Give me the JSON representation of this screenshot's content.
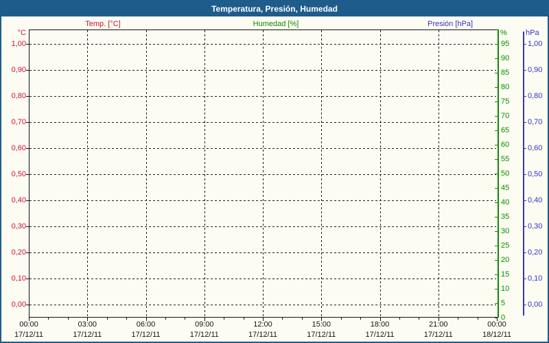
{
  "chart_data": {
    "type": "line",
    "title": "Temperatura, Presión, Humedad",
    "series": [
      {
        "name": "Temp. [°C]",
        "unit": "°C",
        "color": "#CC1133",
        "axis": "left",
        "values": []
      },
      {
        "name": "Humedad [%]",
        "unit": "%",
        "color": "#0B8A00",
        "axis": "right_inner",
        "values": []
      },
      {
        "name": "Presión [hPa]",
        "unit": "hPa",
        "color": "#3232CD",
        "axis": "right_outer",
        "values": []
      }
    ],
    "axes": {
      "left": {
        "unit": "°C",
        "color": "#CC1133",
        "min": 0.0,
        "max": 1.0,
        "step": 0.1,
        "tick_labels": [
          "1,00",
          "0,90",
          "0,80",
          "0,70",
          "0,60",
          "0,50",
          "0,40",
          "0,30",
          "0,20",
          "0,10",
          "0,00"
        ]
      },
      "right_inner": {
        "unit": "%",
        "color": "#0B8A00",
        "min": 0,
        "max": 100,
        "step": 5,
        "tick_labels": [
          "95",
          "90",
          "85",
          "80",
          "75",
          "70",
          "65",
          "60",
          "55",
          "50",
          "45",
          "40",
          "35",
          "30",
          "25",
          "20",
          "15",
          "10",
          "5",
          "0"
        ]
      },
      "right_outer": {
        "unit": "hPa",
        "color": "#3232CD",
        "min": 0.0,
        "max": 1.0,
        "step": 0.1,
        "tick_labels": [
          "1,00",
          "0,90",
          "0,80",
          "0,70",
          "0,60",
          "0,50",
          "0,40",
          "0,30",
          "0,20",
          "0,10",
          "0,00"
        ]
      },
      "x": {
        "major_step_hours": 3,
        "minor_step_hours": 1,
        "major_ticks": [
          {
            "time": "00:00",
            "date": "17/12/11"
          },
          {
            "time": "03:00",
            "date": "17/12/11"
          },
          {
            "time": "06:00",
            "date": "17/12/11"
          },
          {
            "time": "09:00",
            "date": "17/12/11"
          },
          {
            "time": "12:00",
            "date": "17/12/11"
          },
          {
            "time": "15:00",
            "date": "17/12/11"
          },
          {
            "time": "18:00",
            "date": "17/12/11"
          },
          {
            "time": "21:00",
            "date": "17/12/11"
          },
          {
            "time": "00:00",
            "date": "18/12/11"
          }
        ]
      }
    },
    "grid": {
      "style": "dashed",
      "color": "#1c1c1c",
      "horizontal_lines": 11,
      "vertical_lines": 7
    },
    "legend_position": "top"
  },
  "colors": {
    "frame": "#1E5C8C",
    "background": "#FCFCF2",
    "titlebar_text": "#FFFFFF",
    "plot_border": "#111111"
  }
}
